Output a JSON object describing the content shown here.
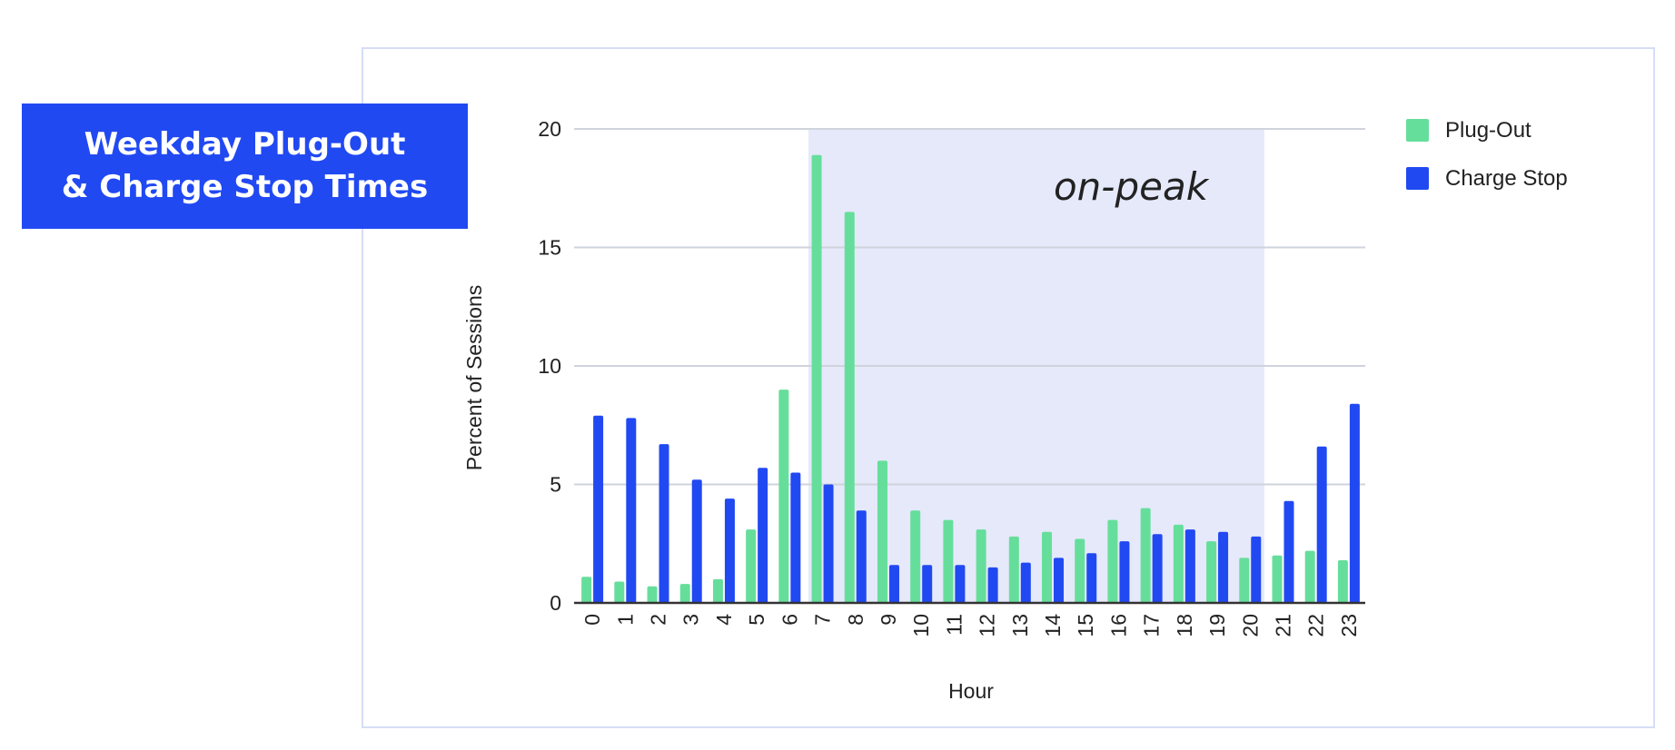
{
  "colors": {
    "plug_out": "#66de9b",
    "charge_stop": "#2149f2",
    "on_peak_band": "#e5e9fa",
    "grid": "#cfd3dc",
    "title_bg": "#2149f2",
    "frame_border": "#d6ddf7"
  },
  "title": {
    "line1": "Weekday Plug-Out",
    "line2": "& Charge Stop Times"
  },
  "chart_data": {
    "type": "bar",
    "xlabel": "Hour",
    "ylabel": "Percent of Sessions",
    "ylim": [
      0,
      20
    ],
    "yticks": [
      0,
      5,
      10,
      15,
      20
    ],
    "grid": true,
    "legend_position": "top-right",
    "categories": [
      "0",
      "1",
      "2",
      "3",
      "4",
      "5",
      "6",
      "7",
      "8",
      "9",
      "10",
      "11",
      "12",
      "13",
      "14",
      "15",
      "16",
      "17",
      "18",
      "19",
      "20",
      "21",
      "22",
      "23"
    ],
    "series": [
      {
        "name": "Plug-Out",
        "color": "#66de9b",
        "values": [
          1.1,
          0.9,
          0.7,
          0.8,
          1.0,
          3.1,
          9.0,
          18.9,
          16.5,
          6.0,
          3.9,
          3.5,
          3.1,
          2.8,
          3.0,
          2.7,
          3.5,
          4.0,
          3.3,
          2.6,
          1.9,
          2.0,
          2.2,
          1.8
        ]
      },
      {
        "name": "Charge Stop",
        "color": "#2149f2",
        "values": [
          7.9,
          7.8,
          6.7,
          5.2,
          4.4,
          5.7,
          5.5,
          5.0,
          3.9,
          1.6,
          1.6,
          1.6,
          1.5,
          1.7,
          1.9,
          2.1,
          2.6,
          2.9,
          3.1,
          3.0,
          2.8,
          4.3,
          6.6,
          8.4
        ]
      }
    ],
    "annotations": [
      {
        "text": "on-peak",
        "x_start": "7",
        "x_end": "20"
      }
    ]
  }
}
